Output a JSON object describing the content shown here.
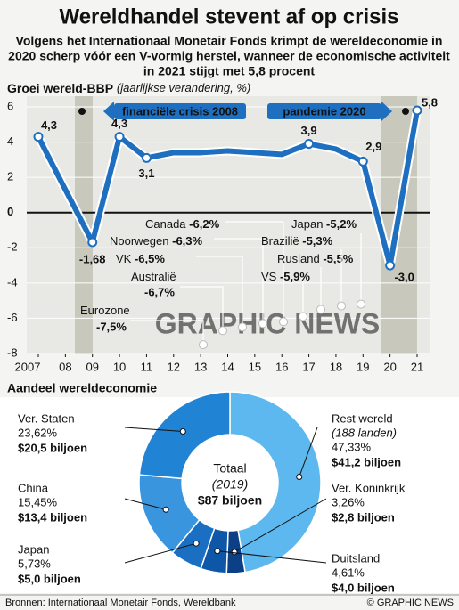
{
  "title": "Wereldhandel stevent af op crisis",
  "subtitle": [
    "Volgens het Internationaal Monetair Fonds krimpt de wereldeconomie in",
    "2020 scherp vóór een V-vormig herstel, wanneer de economische activiteit",
    "in 2021 stijgt met 5,8 procent"
  ],
  "chart_data": [
    {
      "type": "line",
      "title": "Groei wereld-BBP",
      "subtitle": "(jaarlijkse verandering, %)",
      "categories": [
        "2007",
        "08",
        "09",
        "10",
        "11",
        "12",
        "13",
        "14",
        "15",
        "16",
        "17",
        "18",
        "19",
        "20",
        "21"
      ],
      "values": [
        4.3,
        1.3,
        -1.68,
        4.3,
        3.1,
        3.4,
        3.4,
        3.5,
        3.4,
        3.3,
        3.9,
        3.6,
        2.9,
        -3.0,
        5.8
      ],
      "value_labels": [
        "4,3",
        null,
        "-1,68",
        "4,3",
        "3,1",
        null,
        null,
        null,
        null,
        null,
        "3,9",
        null,
        "2,9",
        "-3,0",
        "5,8"
      ],
      "color": "#1f6fc1",
      "ylim": [
        -8,
        6
      ],
      "yticks": [
        -8,
        -6,
        -4,
        -2,
        0,
        2,
        4,
        6
      ],
      "grid": true,
      "annotations": [
        "financiële crisis 2008",
        "pandemie 2020"
      ],
      "forecast_2020": [
        {
          "name": "Eurozone",
          "value": -7.5,
          "value_label": "-7,5%"
        },
        {
          "name": "Australië",
          "value": -6.7,
          "value_label": "-6,7%"
        },
        {
          "name": "VK",
          "value": -6.5,
          "value_label": "-6,5%"
        },
        {
          "name": "Noorwegen",
          "value": -6.3,
          "value_label": "-6,3%"
        },
        {
          "name": "Canada",
          "value": -6.2,
          "value_label": "-6,2%"
        },
        {
          "name": "VS",
          "value": -5.9,
          "value_label": "-5,9%"
        },
        {
          "name": "Rusland",
          "value": -5.5,
          "value_label": "-5,5%"
        },
        {
          "name": "Brazilië",
          "value": -5.3,
          "value_label": "-5,3%"
        },
        {
          "name": "Japan",
          "value": -5.2,
          "value_label": "-5,2%"
        }
      ],
      "watermark": "GRAPHIC NEWS"
    },
    {
      "type": "pie",
      "donut": true,
      "title": "Aandeel wereldeconomie",
      "categories": [
        "Rest wereld",
        "Ver. Koninkrijk",
        "Duitsland",
        "Japan",
        "China",
        "Ver. Staten"
      ],
      "values": [
        47.33,
        3.26,
        4.61,
        5.73,
        15.45,
        23.62
      ],
      "value_labels": [
        "47,33%",
        "3,26%",
        "4,61%",
        "5,73%",
        "15,45%",
        "23,62%"
      ],
      "amounts": [
        "$41,2 biljoen",
        "$2,8 biljoen",
        "$4,0 biljoen",
        "$5,0 biljoen",
        "$13,4 biljoen",
        "$20,5 biljoen"
      ],
      "note": "(188 landen)",
      "colors": [
        "#5cb8ee",
        "#0b3f86",
        "#0d56a8",
        "#1a6fc2",
        "#3a95df",
        "#2183d3"
      ],
      "center": [
        "Totaal",
        "(2019)",
        "$87 biljoen"
      ]
    }
  ],
  "source": "Bronnen: Internationaal Monetair Fonds, Wereldbank",
  "credit": "© GRAPHIC NEWS"
}
